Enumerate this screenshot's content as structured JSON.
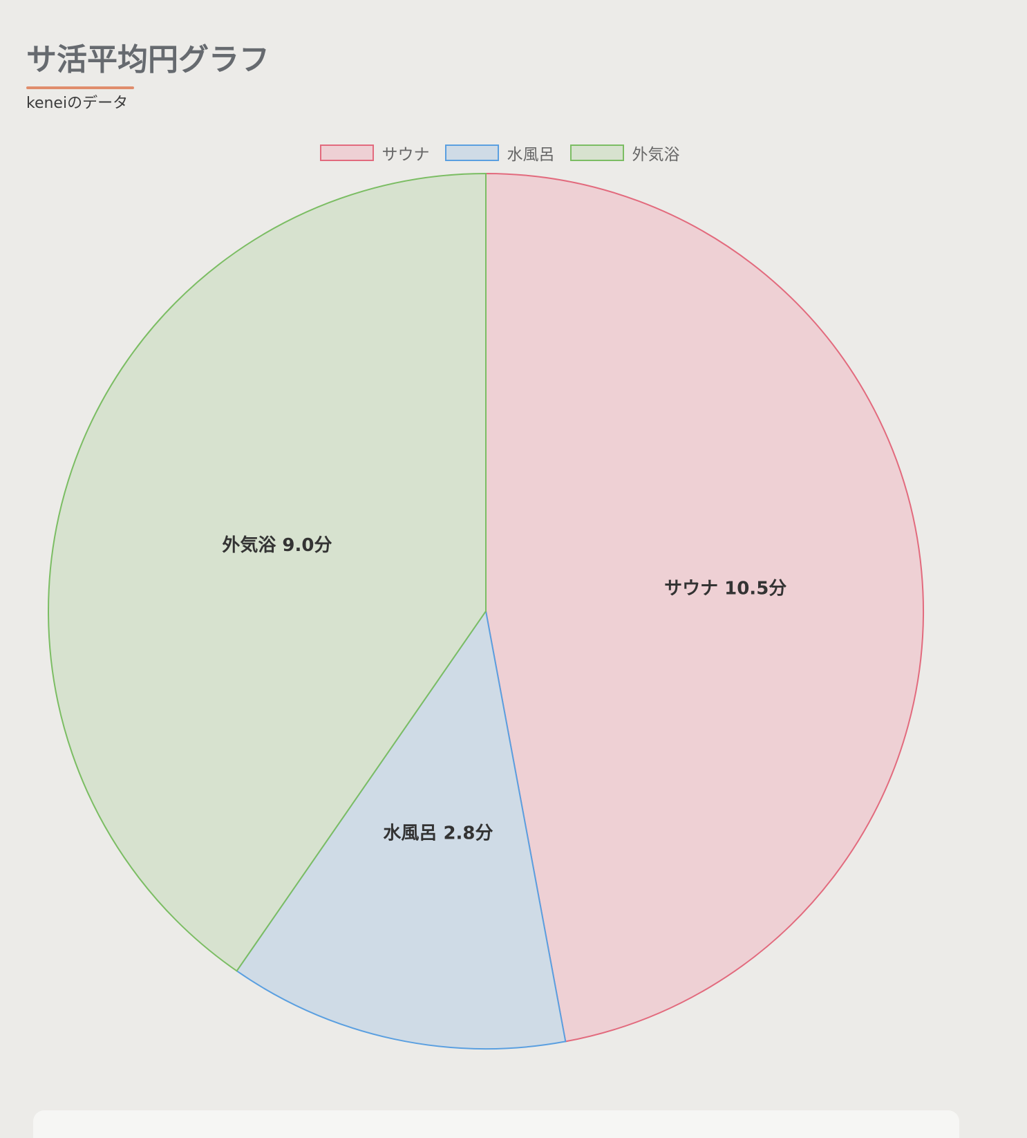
{
  "header": {
    "title": "サ活平均円グラフ",
    "subtitle": "keneiのデータ"
  },
  "chart_data": {
    "type": "pie",
    "categories": [
      "サウナ",
      "水風呂",
      "外気浴"
    ],
    "values": [
      10.5,
      2.8,
      9.0
    ],
    "unit": "分",
    "data_labels": [
      "サウナ  10.5分",
      "水風呂  2.8分",
      "外気浴  9.0分"
    ],
    "fill_colors": [
      "#eed0d4",
      "#cfdbe6",
      "#d7e2cf"
    ],
    "border_colors": [
      "#e26a7d",
      "#5a9fe0",
      "#7bbd63"
    ],
    "legend_position": "top-center",
    "start_angle": "top, clockwise"
  },
  "colors": {
    "background": "#ecebe8",
    "title_text": "#666a6f",
    "title_underline": "#e08d6c"
  }
}
